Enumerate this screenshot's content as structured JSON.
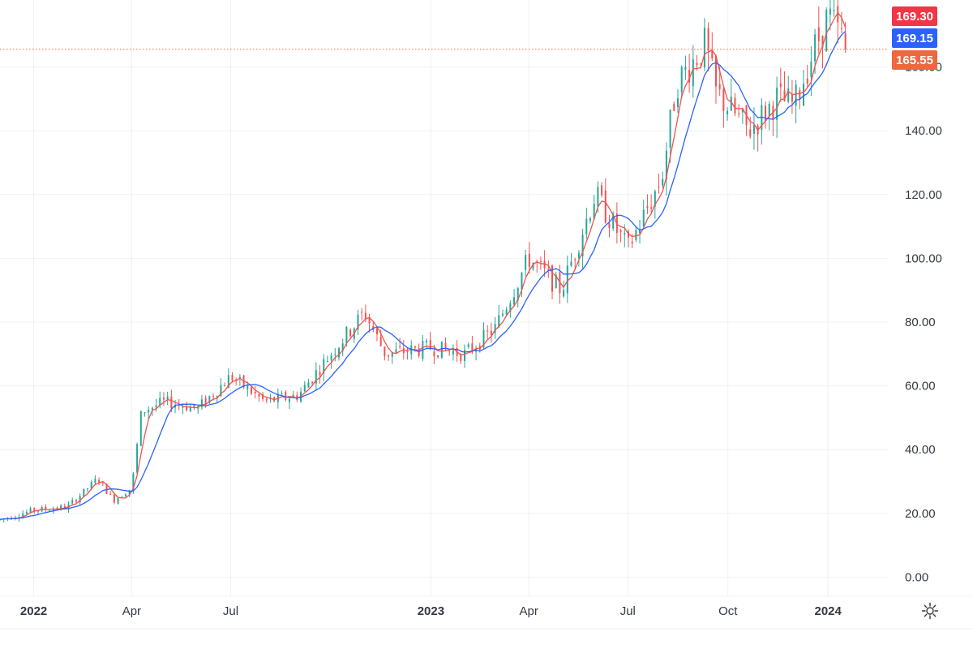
{
  "colors": {
    "up": "#26a69a",
    "down": "#ef5350",
    "ma_fast": "#ef5350",
    "ma_slow": "#2962ff",
    "badge_last": "#f23645",
    "badge_ma": "#2962ff",
    "badge_price": "#f0673f",
    "price_line": "#f0673f"
  },
  "badges": {
    "last_price": "169.30",
    "ma_value": "169.15",
    "current_price": "165.55"
  },
  "settings": {
    "icon": "gear-icon"
  },
  "chart_data": {
    "type": "candlestick",
    "subtype": "weekly OHLC with two moving averages",
    "y_axis": {
      "ticks": [
        "0.00",
        "20.00",
        "40.00",
        "60.00",
        "80.00",
        "100.00",
        "120.00",
        "140.00",
        "160.00"
      ],
      "range": [
        -6,
        181
      ],
      "position": "right"
    },
    "x_axis": {
      "range": [
        "2021-12-01",
        "2024-02-25"
      ],
      "ticks": [
        {
          "label": "2022",
          "date": "2022-01-01",
          "bold": true
        },
        {
          "label": "Apr",
          "date": "2022-04-01",
          "bold": false
        },
        {
          "label": "Jul",
          "date": "2022-07-01",
          "bold": false
        },
        {
          "label": "2023",
          "date": "2023-01-01",
          "bold": true
        },
        {
          "label": "Apr",
          "date": "2023-04-01",
          "bold": false
        },
        {
          "label": "Jul",
          "date": "2023-07-01",
          "bold": false
        },
        {
          "label": "Oct",
          "date": "2023-10-01",
          "bold": false
        },
        {
          "label": "2024",
          "date": "2024-01-01",
          "bold": true
        }
      ]
    },
    "grid": true,
    "current_price_line": 165.55,
    "approximate_closing_path": [
      {
        "date": "2021-12-01",
        "price": 18
      },
      {
        "date": "2022-01-01",
        "price": 21
      },
      {
        "date": "2022-02-01",
        "price": 22
      },
      {
        "date": "2022-03-01",
        "price": 31
      },
      {
        "date": "2022-03-15",
        "price": 24
      },
      {
        "date": "2022-04-01",
        "price": 28
      },
      {
        "date": "2022-04-10",
        "price": 52
      },
      {
        "date": "2022-05-01",
        "price": 55
      },
      {
        "date": "2022-06-01",
        "price": 53
      },
      {
        "date": "2022-07-01",
        "price": 63
      },
      {
        "date": "2022-08-01",
        "price": 55
      },
      {
        "date": "2022-09-01",
        "price": 57
      },
      {
        "date": "2022-10-01",
        "price": 70
      },
      {
        "date": "2022-11-01",
        "price": 83
      },
      {
        "date": "2022-11-20",
        "price": 70
      },
      {
        "date": "2023-01-01",
        "price": 72
      },
      {
        "date": "2023-02-01",
        "price": 70
      },
      {
        "date": "2023-03-01",
        "price": 78
      },
      {
        "date": "2023-04-01",
        "price": 100
      },
      {
        "date": "2023-05-01",
        "price": 90
      },
      {
        "date": "2023-06-01",
        "price": 120
      },
      {
        "date": "2023-07-01",
        "price": 103
      },
      {
        "date": "2023-08-01",
        "price": 125
      },
      {
        "date": "2023-08-15",
        "price": 155
      },
      {
        "date": "2023-09-10",
        "price": 167
      },
      {
        "date": "2023-09-20",
        "price": 152
      },
      {
        "date": "2023-10-20",
        "price": 140
      },
      {
        "date": "2023-11-15",
        "price": 150
      },
      {
        "date": "2023-12-01",
        "price": 148
      },
      {
        "date": "2023-12-15",
        "price": 162
      },
      {
        "date": "2024-01-01",
        "price": 176
      },
      {
        "date": "2024-01-20",
        "price": 165.55
      }
    ]
  }
}
